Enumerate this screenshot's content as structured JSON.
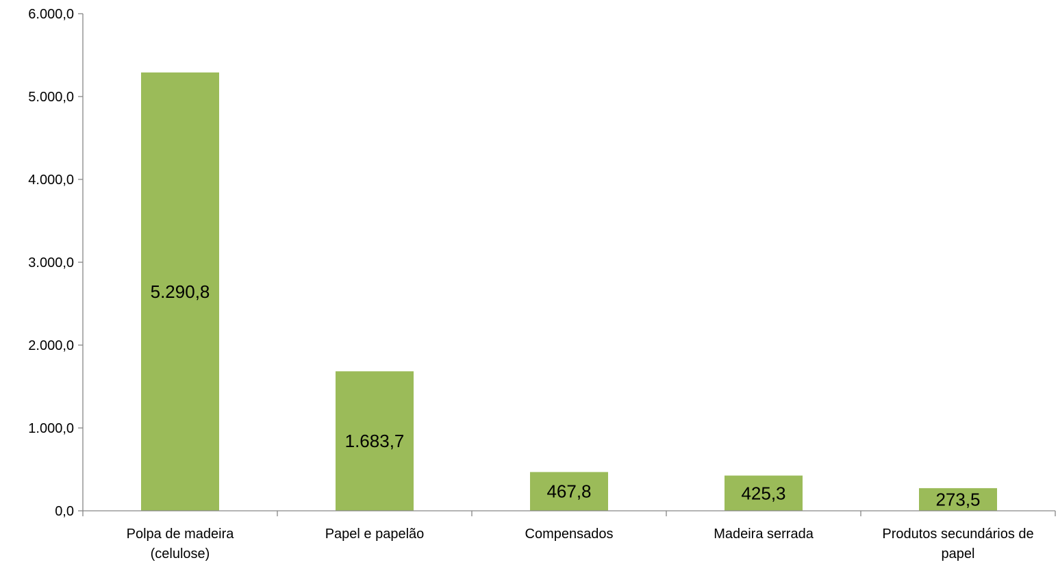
{
  "chart_data": {
    "type": "bar",
    "title": "",
    "xlabel": "",
    "ylabel": "",
    "categories": [
      [
        "Polpa de madeira",
        "(celulose)"
      ],
      [
        "Papel e papelão"
      ],
      [
        "Compensados"
      ],
      [
        "Madeira serrada"
      ],
      [
        "Produtos secundários de",
        "papel"
      ]
    ],
    "values": [
      5290.8,
      1683.7,
      467.8,
      425.3,
      273.5
    ],
    "value_labels": [
      "5.290,8",
      "1.683,7",
      "467,8",
      "425,3",
      "273,5"
    ],
    "ylim": [
      0,
      6000
    ],
    "yticks": [
      0,
      1000,
      2000,
      3000,
      4000,
      5000,
      6000
    ],
    "ytick_labels": [
      "0,0",
      "1.000,0",
      "2.000,0",
      "3.000,0",
      "4.000,0",
      "5.000,0",
      "6.000,0"
    ],
    "bar_color": "#9BBB59",
    "axis_color": "#868686",
    "grid": false,
    "legend": "none"
  }
}
